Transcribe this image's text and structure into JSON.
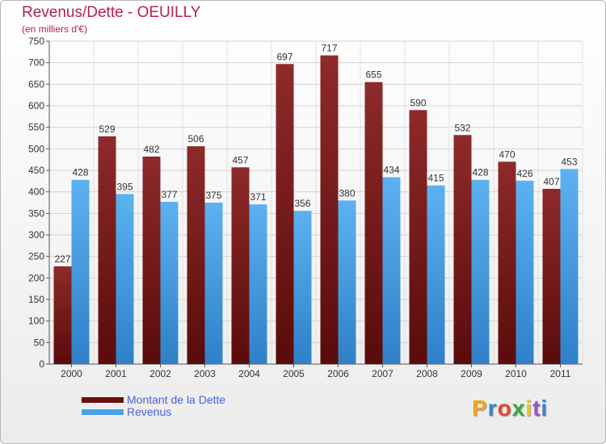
{
  "header": {
    "title": "Revenus/Dette - OEUILLY",
    "subtitle": "(en milliers d'€)"
  },
  "brand": {
    "letters": [
      "P",
      "r",
      "o",
      "x",
      "i",
      "t",
      "i"
    ],
    "colors": [
      "#f2a418",
      "#3a82c8",
      "#e8482a",
      "#3aa844",
      "#f2c318",
      "#9a55c0",
      "#3a82c8"
    ]
  },
  "chart_data": {
    "type": "bar",
    "title": "Revenus/Dette - OEUILLY",
    "subtitle": "(en milliers d'€)",
    "categories": [
      "2000",
      "2001",
      "2002",
      "2003",
      "2004",
      "2005",
      "2006",
      "2007",
      "2008",
      "2009",
      "2010",
      "2011"
    ],
    "series": [
      {
        "name": "Montant de la Dette",
        "values": [
          227,
          529,
          482,
          506,
          457,
          697,
          717,
          655,
          590,
          532,
          470,
          407
        ],
        "color": "#7a1b1b"
      },
      {
        "name": "Revenus",
        "values": [
          428,
          395,
          377,
          375,
          371,
          356,
          380,
          434,
          415,
          428,
          426,
          453
        ],
        "color": "#4aa2e8"
      }
    ],
    "yticks": [
      0,
      50,
      100,
      150,
      200,
      250,
      300,
      350,
      400,
      450,
      500,
      550,
      600,
      650,
      700,
      750
    ],
    "ylim": [
      0,
      750
    ],
    "grid": true,
    "legend": "bottom-left"
  }
}
